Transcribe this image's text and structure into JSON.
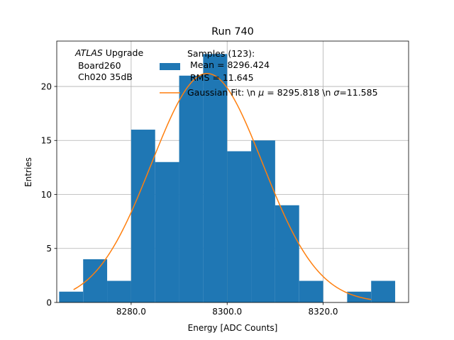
{
  "chart_data": {
    "type": "bar",
    "subtype": "histogram",
    "title": "Run 740",
    "xlabel": "Energy [ADC Counts]",
    "ylabel": "Entries",
    "xlim": [
      8264.5,
      8337.8
    ],
    "ylim": [
      0,
      24.2
    ],
    "grid": true,
    "xticks": [
      8280.0,
      8300.0,
      8320.0
    ],
    "xtick_labels": [
      "8280.0",
      "8300.0",
      "8320.0"
    ],
    "yticks": [
      0,
      5,
      10,
      15,
      20
    ],
    "ytick_labels": [
      "0",
      "5",
      "10",
      "15",
      "20"
    ],
    "bin_edges": [
      8265.0,
      8270.0,
      8275.0,
      8280.0,
      8285.0,
      8290.0,
      8295.0,
      8300.0,
      8305.0,
      8310.0,
      8315.0,
      8320.0,
      8325.0,
      8330.0,
      8335.0
    ],
    "counts": [
      1,
      4,
      2,
      16,
      13,
      21,
      23,
      14,
      15,
      9,
      2,
      0,
      1,
      2
    ],
    "histogram_color": "#1f77b4",
    "fit": {
      "type": "gaussian",
      "mean": 8295.818,
      "sigma": 11.585,
      "amplitude": 21.2,
      "x_range": [
        8268.0,
        8330.0
      ],
      "color": "#ff7f0e"
    },
    "annotation": {
      "line1_italic": "ATLAS",
      "line1_rest": " Upgrade",
      "line2": " Board260",
      "line3": " Ch020 35dB"
    },
    "legend": {
      "position": "top-center",
      "hist_label_lines": [
        "Samples (123):",
        " Mean = 8296.424",
        " RMS = 11.645"
      ],
      "fit_label": {
        "prefix": "Gaussian Fit: \\n ",
        "mu_symbol": "μ",
        "mu_text": " = 8295.818 \\n ",
        "sigma_symbol": "σ",
        "sigma_text": "=11.585"
      }
    }
  }
}
